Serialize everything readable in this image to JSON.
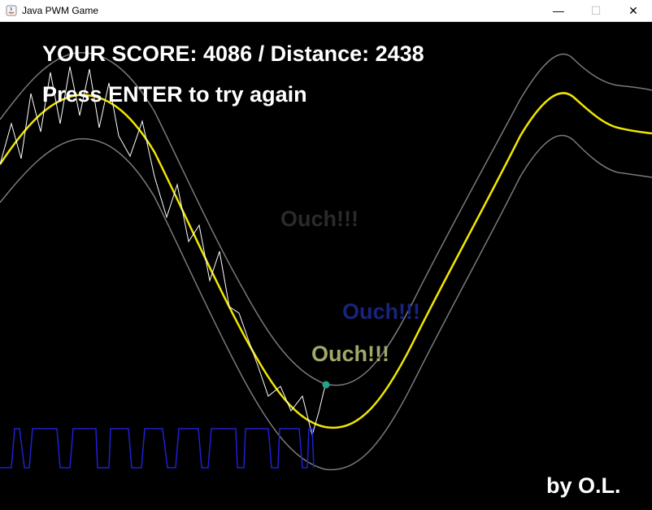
{
  "window": {
    "title": "Java PWM Game",
    "minimize_glyph": "—",
    "maximize_glyph": "☐",
    "close_glyph": "✕"
  },
  "hud": {
    "score_line": "YOUR SCORE: 4086 / Distance: 2438",
    "restart_prompt": "Press ENTER to try again"
  },
  "messages": [
    {
      "text": "Ouch!!!",
      "color": "#2a2a2a"
    },
    {
      "text": "Ouch!!!",
      "color": "#1a237e"
    },
    {
      "text": "Ouch!!!",
      "color": "#a3a86a"
    }
  ],
  "credit": "by O.L.",
  "colors": {
    "background": "#000000",
    "target_line": "#f2e600",
    "boundary_lines": "#7a7a7a",
    "player_trail": "#ffffff",
    "pwm_signal": "#1f1fd6",
    "player_dot": "#1fa58a",
    "hud_text": "#ffffff"
  }
}
